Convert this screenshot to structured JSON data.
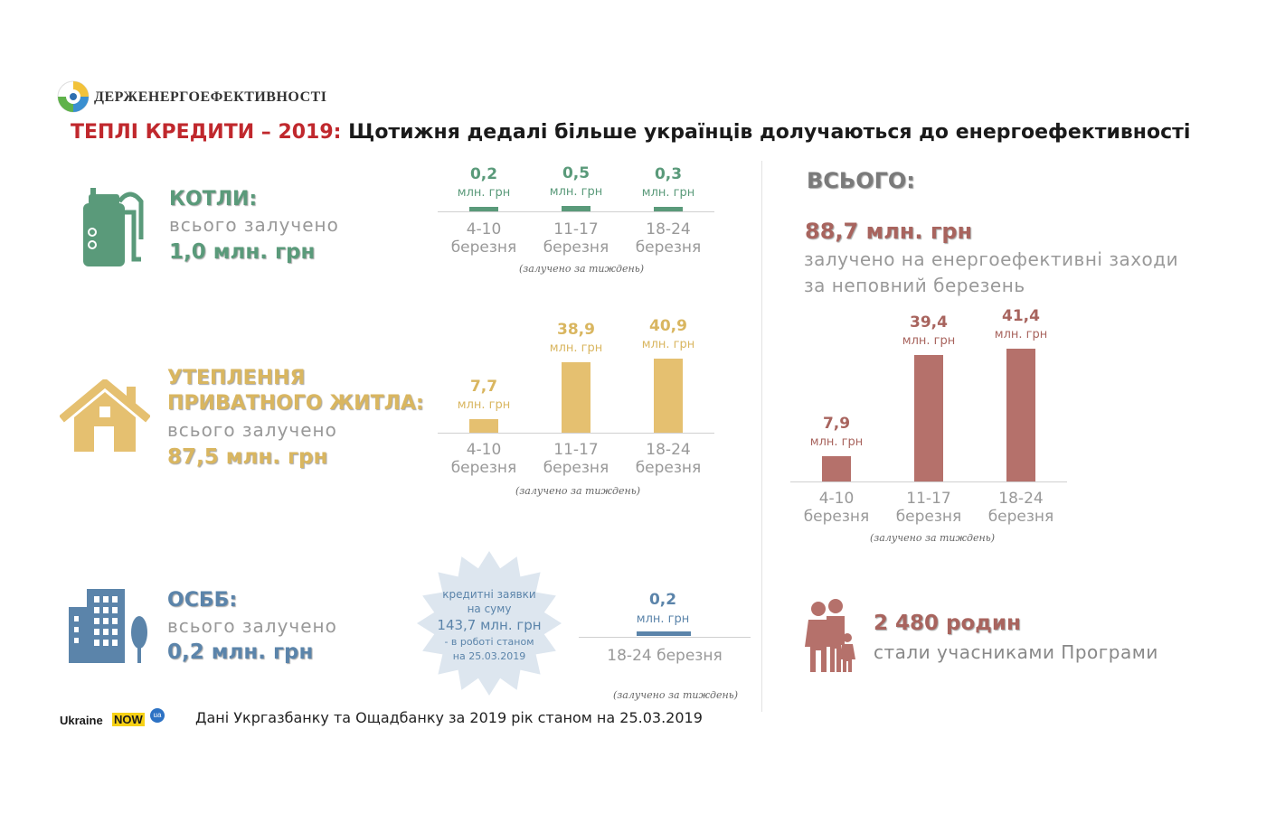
{
  "org": {
    "name": "ДЕРЖЕНЕРГОЕФЕКТИВНОСТІ"
  },
  "title": {
    "prefix": "ТЕПЛІ КРЕДИТИ – 2019:",
    "text": "Щотижня дедалі більше українців долучаються до енергоефективності"
  },
  "colors": {
    "green": "#5a9a7a",
    "gold": "#e5c070",
    "blue": "#5b84aa",
    "rose": "#b5716b",
    "red": "#c0282d"
  },
  "categories": [
    "4-10",
    "11-17",
    "18-24"
  ],
  "category_suffix": "березня",
  "unit": "млн. грн",
  "week_note": "(залучено за тиждень)",
  "boilers": {
    "icon": "boiler-icon",
    "heading": "КОТЛИ:",
    "subtitle": "всього залучено",
    "total": "1,0 млн. грн",
    "labels": [
      "0,2",
      "0,5",
      "0,3"
    ]
  },
  "housing": {
    "icon": "house-icon",
    "heading_line1": "УТЕПЛЕННЯ",
    "heading_line2": "ПРИВАТНОГО ЖИТЛА:",
    "subtitle": "всього залучено",
    "total": "87,5 млн. грн",
    "labels": [
      "7,7",
      "38,9",
      "40,9"
    ]
  },
  "osbb": {
    "icon": "apartment-building-icon",
    "heading": "ОСББ:",
    "subtitle": "всього залучено",
    "total": "0,2 млн. грн",
    "value_label": "0,2",
    "category": "18-24 березня",
    "badge": {
      "line1": "кредитні заявки",
      "line2": "на суму",
      "amount": "143,7 млн. грн",
      "line3": "- в роботі станом",
      "line4": "на 25.03.2019"
    }
  },
  "total_panel": {
    "heading": "ВСЬОГО:",
    "amount": "88,7 млн. грн",
    "desc_line1": "залучено на енергоефективні заходи",
    "desc_line2": "за неповний березень",
    "labels": [
      "7,9",
      "39,4",
      "41,4"
    ]
  },
  "families": {
    "icon": "family-icon",
    "count": "2 480 родин",
    "desc": "стали учасниками Програми"
  },
  "footer": {
    "logo_word": "Ukraine",
    "logo_now": "NOW",
    "logo_ua": "ua",
    "source": "Дані Укргазбанку та Ощадбанку за 2019 рік станом на 25.03.2019"
  },
  "chart_data": [
    {
      "type": "bar",
      "title": "КОТЛИ",
      "categories": [
        "4-10 березня",
        "11-17 березня",
        "18-24 березня"
      ],
      "values": [
        0.2,
        0.5,
        0.3
      ],
      "ylabel": "млн. грн"
    },
    {
      "type": "bar",
      "title": "УТЕПЛЕННЯ ПРИВАТНОГО ЖИТЛА",
      "categories": [
        "4-10 березня",
        "11-17 березня",
        "18-24 березня"
      ],
      "values": [
        7.7,
        38.9,
        40.9
      ],
      "ylabel": "млн. грн"
    },
    {
      "type": "bar",
      "title": "ОСББ",
      "categories": [
        "18-24 березня"
      ],
      "values": [
        0.2
      ],
      "ylabel": "млн. грн"
    },
    {
      "type": "bar",
      "title": "ВСЬОГО",
      "categories": [
        "4-10 березня",
        "11-17 березня",
        "18-24 березня"
      ],
      "values": [
        7.9,
        39.4,
        41.4
      ],
      "ylabel": "млн. грн"
    }
  ]
}
